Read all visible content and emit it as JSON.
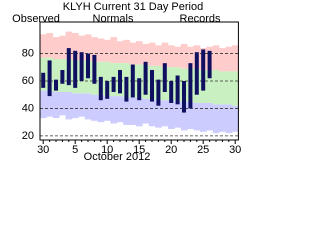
{
  "chart_data": {
    "type": "climate-range",
    "title": "KLYH Current 31 Day Period",
    "x_label": "October 2012",
    "categories": [
      "30",
      null,
      null,
      null,
      null,
      "5",
      null,
      null,
      null,
      null,
      "10",
      null,
      null,
      null,
      null,
      "15",
      null,
      null,
      null,
      null,
      "20",
      null,
      null,
      null,
      null,
      "25",
      null,
      null,
      null,
      null,
      "30"
    ],
    "ylim": [
      17,
      103
    ],
    "yticks": [
      20,
      40,
      60,
      80
    ],
    "grid": true,
    "series": [
      {
        "name": "Observed",
        "color": "#101060",
        "high": [
          66,
          75,
          61,
          68,
          84,
          82,
          81,
          80,
          79,
          63,
          60,
          63,
          68,
          63,
          72,
          62,
          74,
          68,
          61,
          73,
          60,
          64,
          60,
          73,
          81,
          83,
          82,
          null,
          null,
          null,
          null
        ],
        "low": [
          55,
          49,
          53,
          58,
          57,
          55,
          60,
          62,
          58,
          46,
          47,
          52,
          51,
          45,
          48,
          46,
          50,
          45,
          42,
          52,
          44,
          43,
          37,
          40,
          50,
          53,
          62,
          null,
          null,
          null,
          null
        ]
      },
      {
        "name": "Normals",
        "color": "#009900",
        "fill": "#c8f0c0",
        "high": [
          77,
          77,
          76,
          76,
          76,
          75,
          75,
          75,
          74,
          74,
          74,
          73,
          73,
          73,
          72,
          72,
          72,
          71,
          71,
          70,
          70,
          70,
          69,
          69,
          69,
          68,
          68,
          68,
          67,
          67,
          67
        ],
        "low": [
          53,
          53,
          52,
          52,
          52,
          51,
          51,
          51,
          50,
          50,
          49,
          49,
          49,
          48,
          48,
          48,
          47,
          47,
          46,
          46,
          46,
          45,
          45,
          45,
          44,
          44,
          44,
          43,
          43,
          43,
          42
        ]
      },
      {
        "name": "Records",
        "color": "#cc99dd",
        "high_fill": "#ffcccc",
        "low_fill": "#ccccff",
        "high": [
          94,
          95,
          92,
          93,
          96,
          95,
          93,
          94,
          92,
          91,
          90,
          92,
          89,
          90,
          88,
          89,
          87,
          88,
          86,
          88,
          86,
          85,
          87,
          85,
          86,
          84,
          85,
          86,
          84,
          85,
          86
        ],
        "low": [
          33,
          34,
          33,
          35,
          32,
          33,
          34,
          32,
          31,
          30,
          31,
          29,
          30,
          28,
          28,
          27,
          29,
          27,
          26,
          27,
          25,
          26,
          24,
          25,
          24,
          23,
          24,
          22,
          23,
          22,
          23
        ]
      }
    ]
  }
}
